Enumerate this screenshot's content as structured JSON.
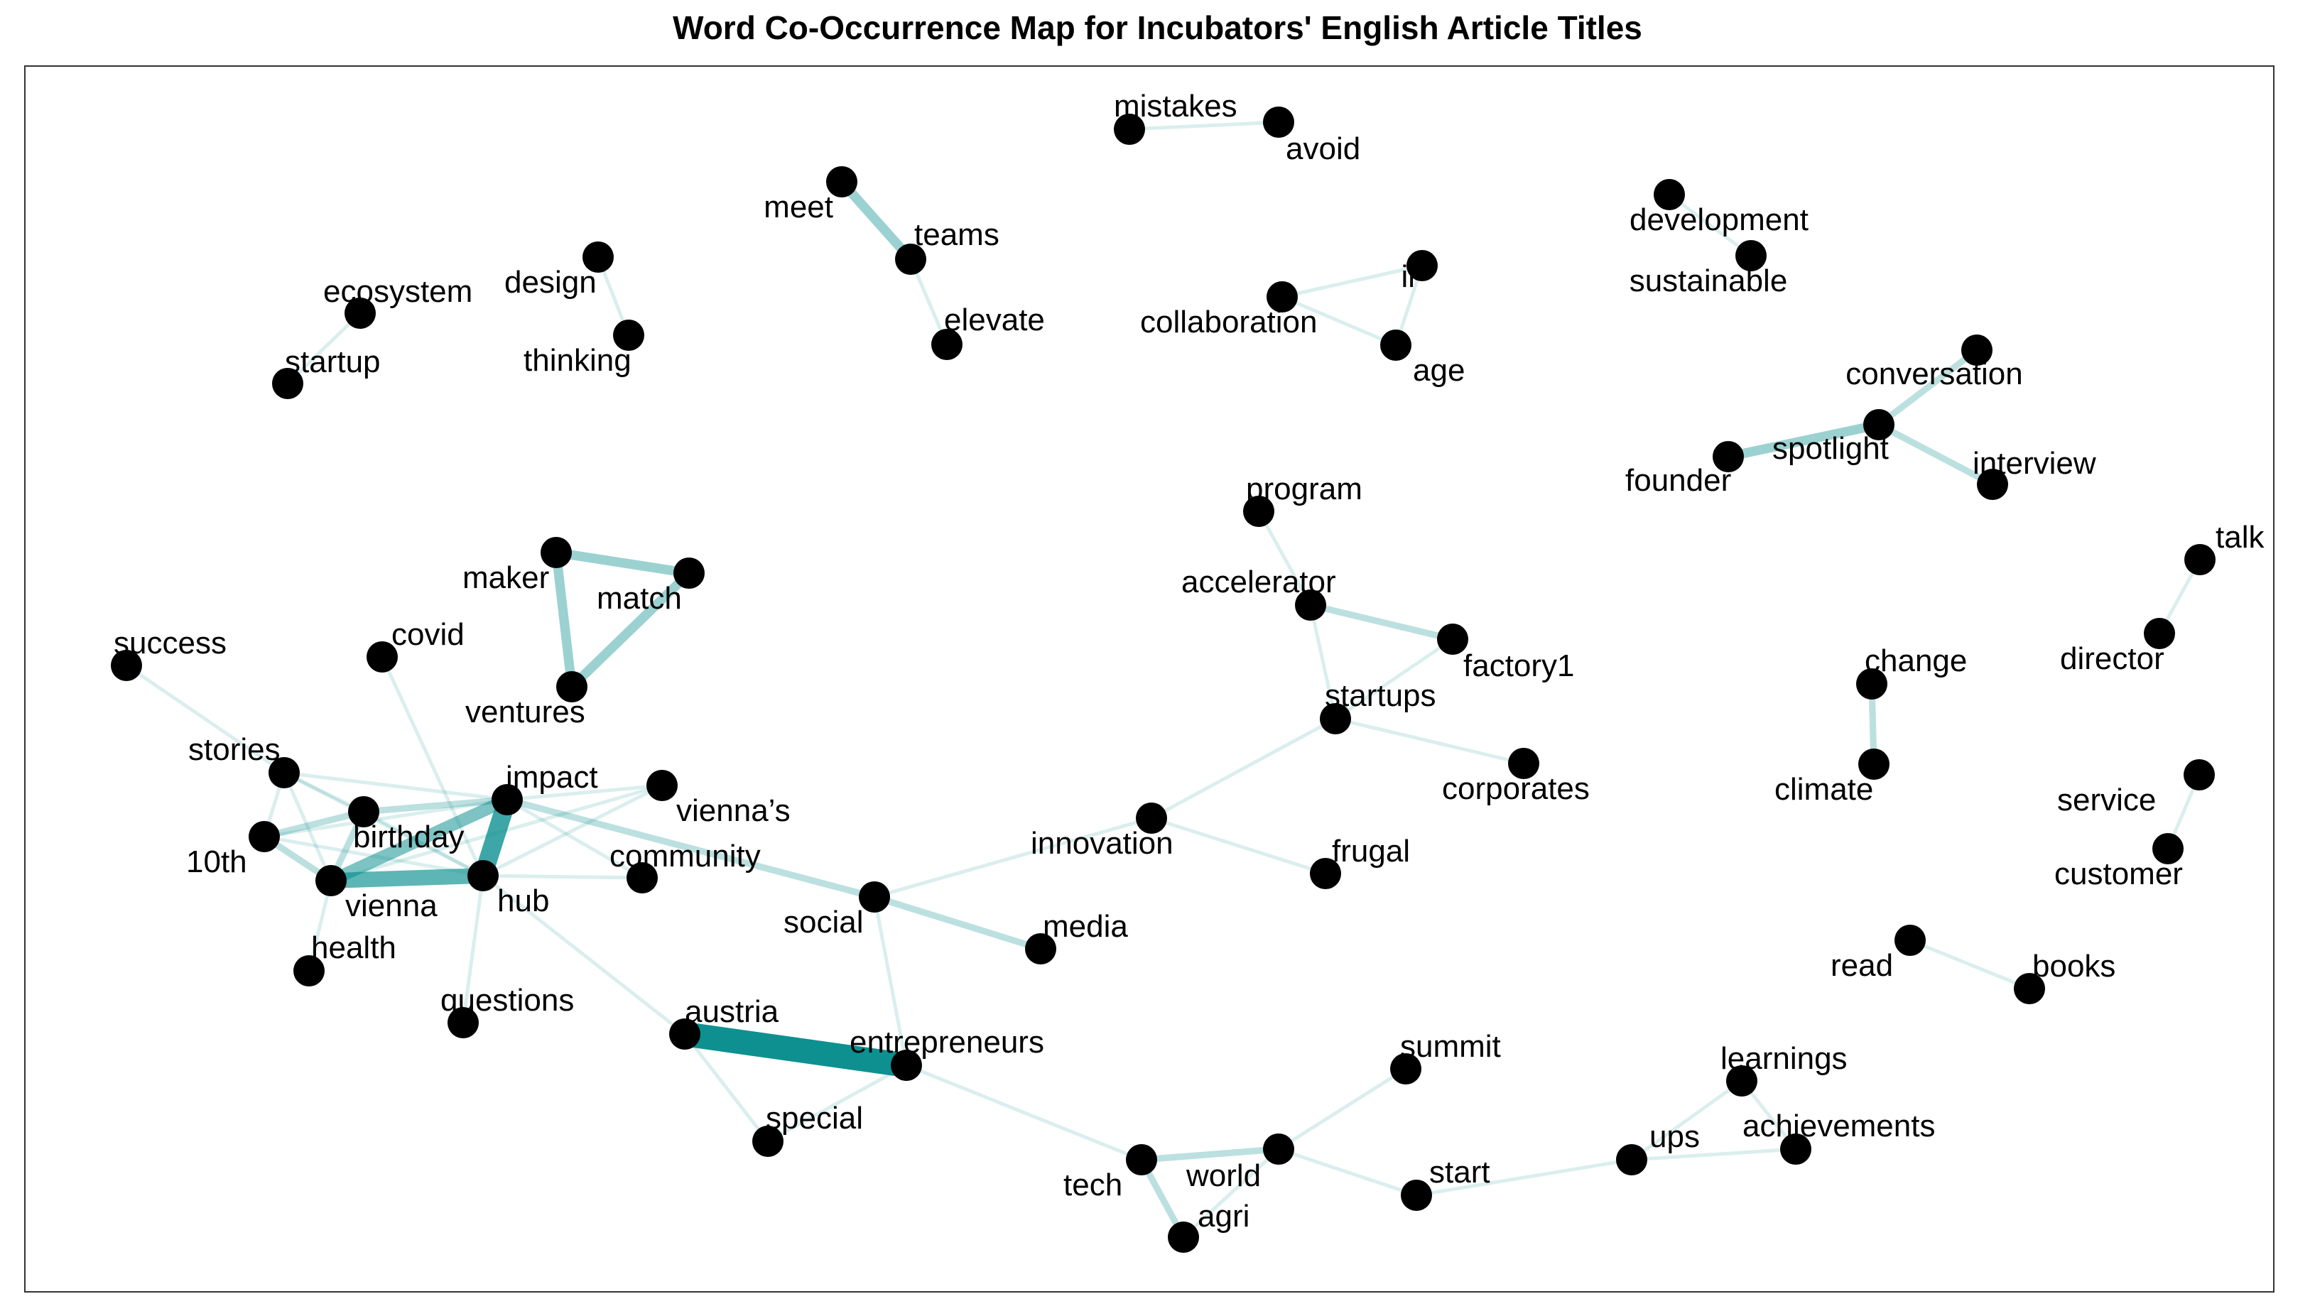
{
  "title": "Word Co-Occurrence Map for Incubators' English Article Titles",
  "colors": {
    "edge": "#0E9090",
    "node": "#000000",
    "frame": "#333333"
  },
  "nodes": [
    {
      "id": "mistakes",
      "label": "mistakes"
    },
    {
      "id": "avoid",
      "label": "avoid"
    },
    {
      "id": "meet",
      "label": "meet"
    },
    {
      "id": "teams",
      "label": "teams"
    },
    {
      "id": "elevate",
      "label": "elevate"
    },
    {
      "id": "development",
      "label": "development"
    },
    {
      "id": "sustainable",
      "label": "sustainable"
    },
    {
      "id": "ii",
      "label": "ii"
    },
    {
      "id": "collaboration",
      "label": "collaboration"
    },
    {
      "id": "age",
      "label": "age"
    },
    {
      "id": "design",
      "label": "design"
    },
    {
      "id": "thinking",
      "label": "thinking"
    },
    {
      "id": "ecosystem",
      "label": "ecosystem"
    },
    {
      "id": "startup",
      "label": "startup"
    },
    {
      "id": "conversation",
      "label": "conversation"
    },
    {
      "id": "spotlight",
      "label": "spotlight"
    },
    {
      "id": "founder",
      "label": "founder"
    },
    {
      "id": "interview",
      "label": "interview"
    },
    {
      "id": "program",
      "label": "program"
    },
    {
      "id": "accelerator",
      "label": "accelerator"
    },
    {
      "id": "factory1",
      "label": "factory1"
    },
    {
      "id": "startups",
      "label": "startups"
    },
    {
      "id": "corporates",
      "label": "corporates"
    },
    {
      "id": "talk",
      "label": "talk"
    },
    {
      "id": "director",
      "label": "director"
    },
    {
      "id": "change",
      "label": "change"
    },
    {
      "id": "climate",
      "label": "climate"
    },
    {
      "id": "service",
      "label": "service"
    },
    {
      "id": "customer",
      "label": "customer"
    },
    {
      "id": "maker",
      "label": "maker"
    },
    {
      "id": "match",
      "label": "match"
    },
    {
      "id": "ventures",
      "label": "ventures"
    },
    {
      "id": "success",
      "label": "success"
    },
    {
      "id": "covid",
      "label": "covid"
    },
    {
      "id": "stories",
      "label": "stories"
    },
    {
      "id": "impact",
      "label": "impact"
    },
    {
      "id": "viennas",
      "label": "vienna’s"
    },
    {
      "id": "birthday",
      "label": "birthday"
    },
    {
      "id": "10th",
      "label": "10th"
    },
    {
      "id": "vienna",
      "label": "vienna"
    },
    {
      "id": "hub",
      "label": "hub"
    },
    {
      "id": "community",
      "label": "community"
    },
    {
      "id": "health",
      "label": "health"
    },
    {
      "id": "innovation",
      "label": "innovation"
    },
    {
      "id": "frugal",
      "label": "frugal"
    },
    {
      "id": "social",
      "label": "social"
    },
    {
      "id": "media",
      "label": "media"
    },
    {
      "id": "questions",
      "label": "questions"
    },
    {
      "id": "austria",
      "label": "austria"
    },
    {
      "id": "entrepreneurs",
      "label": "entrepreneurs"
    },
    {
      "id": "special",
      "label": "special"
    },
    {
      "id": "summit",
      "label": "summit"
    },
    {
      "id": "learnings",
      "label": "learnings"
    },
    {
      "id": "read",
      "label": "read"
    },
    {
      "id": "books",
      "label": "books"
    },
    {
      "id": "ups",
      "label": "ups"
    },
    {
      "id": "achievements",
      "label": "achievements"
    },
    {
      "id": "start",
      "label": "start"
    },
    {
      "id": "tech",
      "label": "tech"
    },
    {
      "id": "world",
      "label": "world"
    },
    {
      "id": "agri",
      "label": "agri"
    }
  ],
  "edges": [
    {
      "source": "mistakes",
      "target": "avoid",
      "weight": 1
    },
    {
      "source": "meet",
      "target": "teams",
      "weight": 3
    },
    {
      "source": "teams",
      "target": "elevate",
      "weight": 1
    },
    {
      "source": "development",
      "target": "sustainable",
      "weight": 1
    },
    {
      "source": "collaboration",
      "target": "ii",
      "weight": 1
    },
    {
      "source": "collaboration",
      "target": "age",
      "weight": 1
    },
    {
      "source": "ii",
      "target": "age",
      "weight": 1
    },
    {
      "source": "design",
      "target": "thinking",
      "weight": 1
    },
    {
      "source": "ecosystem",
      "target": "startup",
      "weight": 1
    },
    {
      "source": "spotlight",
      "target": "conversation",
      "weight": 2
    },
    {
      "source": "spotlight",
      "target": "founder",
      "weight": 3
    },
    {
      "source": "spotlight",
      "target": "interview",
      "weight": 2
    },
    {
      "source": "program",
      "target": "accelerator",
      "weight": 1
    },
    {
      "source": "accelerator",
      "target": "factory1",
      "weight": 2
    },
    {
      "source": "accelerator",
      "target": "startups",
      "weight": 1
    },
    {
      "source": "factory1",
      "target": "startups",
      "weight": 1
    },
    {
      "source": "startups",
      "target": "corporates",
      "weight": 1
    },
    {
      "source": "startups",
      "target": "innovation",
      "weight": 1
    },
    {
      "source": "talk",
      "target": "director",
      "weight": 1
    },
    {
      "source": "change",
      "target": "climate",
      "weight": 2
    },
    {
      "source": "maker",
      "target": "match",
      "weight": 3
    },
    {
      "source": "maker",
      "target": "ventures",
      "weight": 3
    },
    {
      "source": "match",
      "target": "ventures",
      "weight": 3
    },
    {
      "source": "success",
      "target": "stories",
      "weight": 1
    },
    {
      "source": "covid",
      "target": "hub",
      "weight": 1
    },
    {
      "source": "stories",
      "target": "impact",
      "weight": 1
    },
    {
      "source": "stories",
      "target": "birthday",
      "weight": 1
    },
    {
      "source": "stories",
      "target": "10th",
      "weight": 1
    },
    {
      "source": "stories",
      "target": "vienna",
      "weight": 1
    },
    {
      "source": "stories",
      "target": "hub",
      "weight": 1
    },
    {
      "source": "impact",
      "target": "hub",
      "weight": 6
    },
    {
      "source": "impact",
      "target": "vienna",
      "weight": 4
    },
    {
      "source": "impact",
      "target": "birthday",
      "weight": 2
    },
    {
      "source": "impact",
      "target": "10th",
      "weight": 1
    },
    {
      "source": "impact",
      "target": "social",
      "weight": 2
    },
    {
      "source": "impact",
      "target": "viennas",
      "weight": 1
    },
    {
      "source": "impact",
      "target": "community",
      "weight": 1
    },
    {
      "source": "vienna",
      "target": "hub",
      "weight": 5
    },
    {
      "source": "vienna",
      "target": "birthday",
      "weight": 2
    },
    {
      "source": "vienna",
      "target": "10th",
      "weight": 2
    },
    {
      "source": "vienna",
      "target": "health",
      "weight": 1
    },
    {
      "source": "birthday",
      "target": "10th",
      "weight": 2
    },
    {
      "source": "birthday",
      "target": "hub",
      "weight": 1
    },
    {
      "source": "10th",
      "target": "hub",
      "weight": 1
    },
    {
      "source": "hub",
      "target": "community",
      "weight": 1
    },
    {
      "source": "hub",
      "target": "viennas",
      "weight": 1
    },
    {
      "source": "hub",
      "target": "questions",
      "weight": 1
    },
    {
      "source": "hub",
      "target": "austria",
      "weight": 1
    },
    {
      "source": "vienna",
      "target": "viennas",
      "weight": 1
    },
    {
      "source": "social",
      "target": "media",
      "weight": 2
    },
    {
      "source": "social",
      "target": "innovation",
      "weight": 1
    },
    {
      "source": "social",
      "target": "entrepreneurs",
      "weight": 1
    },
    {
      "source": "innovation",
      "target": "frugal",
      "weight": 1
    },
    {
      "source": "austria",
      "target": "entrepreneurs",
      "weight": 8
    },
    {
      "source": "austria",
      "target": "special",
      "weight": 1
    },
    {
      "source": "entrepreneurs",
      "target": "special",
      "weight": 1
    },
    {
      "source": "entrepreneurs",
      "target": "tech",
      "weight": 1
    },
    {
      "source": "tech",
      "target": "world",
      "weight": 2
    },
    {
      "source": "tech",
      "target": "agri",
      "weight": 2
    },
    {
      "source": "world",
      "target": "agri",
      "weight": 1
    },
    {
      "source": "world",
      "target": "summit",
      "weight": 1
    },
    {
      "source": "world",
      "target": "start",
      "weight": 1
    },
    {
      "source": "start",
      "target": "ups",
      "weight": 1
    },
    {
      "source": "ups",
      "target": "learnings",
      "weight": 1
    },
    {
      "source": "ups",
      "target": "achievements",
      "weight": 1
    },
    {
      "source": "learnings",
      "target": "achievements",
      "weight": 1
    },
    {
      "source": "read",
      "target": "books",
      "weight": 1
    },
    {
      "source": "service",
      "target": "customer",
      "weight": 1
    }
  ]
}
